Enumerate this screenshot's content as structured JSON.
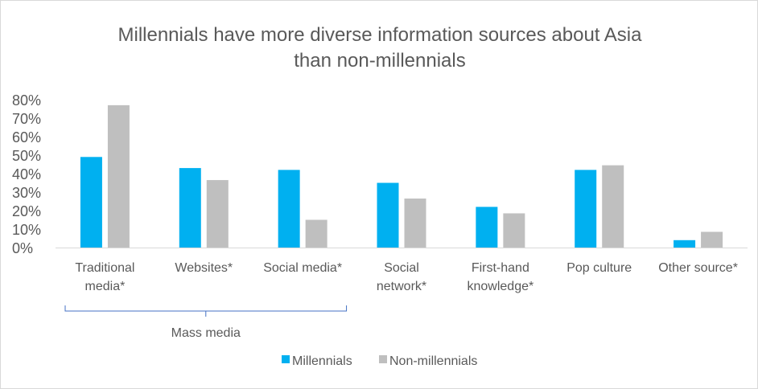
{
  "chart_data": {
    "type": "bar",
    "title_lines": [
      "Millennials have more diverse information sources about Asia",
      "than non-millennials"
    ],
    "categories": [
      [
        "Traditional",
        "media*"
      ],
      [
        "Websites*"
      ],
      [
        "Social media*"
      ],
      [
        "Social",
        "network*"
      ],
      [
        "First-hand",
        "knowledge*"
      ],
      [
        "Pop culture"
      ],
      [
        "Other source*"
      ]
    ],
    "series": [
      {
        "name": "Millennials",
        "color": "#00b0f0",
        "values": [
          49,
          43,
          42,
          35,
          22,
          42,
          4
        ]
      },
      {
        "name": "Non-millennials",
        "color": "#bfbfbf",
        "values": [
          77,
          36.5,
          15,
          26.5,
          18.5,
          44.5,
          8.5
        ]
      }
    ],
    "y_ticks": [
      "0%",
      "10%",
      "20%",
      "30%",
      "40%",
      "50%",
      "60%",
      "70%",
      "80%"
    ],
    "ylim": [
      0,
      80
    ],
    "grid": false,
    "legend_position": "bottom",
    "group_annotation": {
      "label": "Mass media",
      "categories": [
        0,
        1,
        2
      ]
    }
  }
}
